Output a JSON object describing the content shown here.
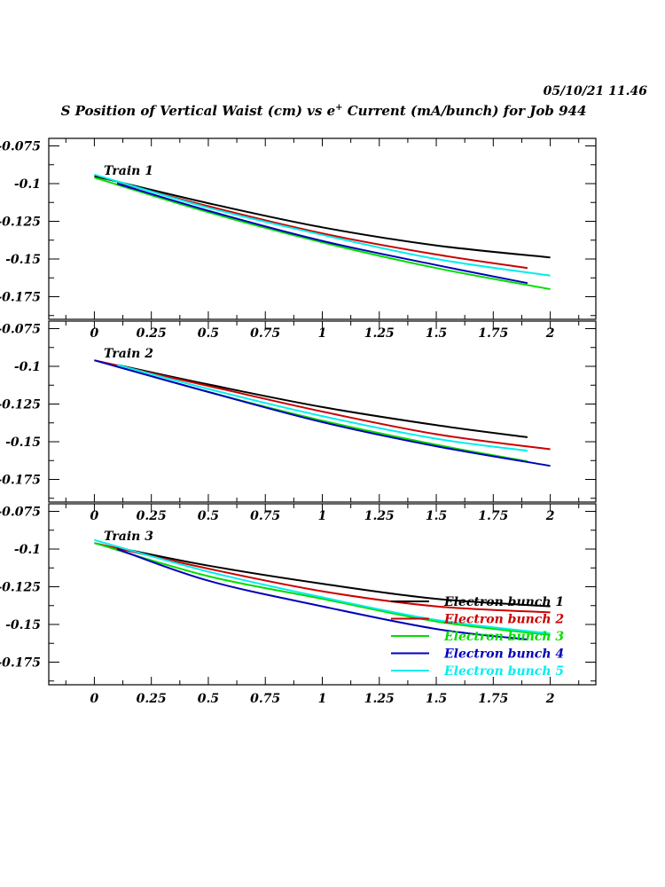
{
  "timestamp": "05/10/21   11.46",
  "title": {
    "prefix": "S Position of Vertical Waist (cm) vs e",
    "superscript": "+",
    "suffix": " Current (mA/bunch) for Job 944"
  },
  "colors": {
    "Electron bunch 1": "#000000",
    "Electron bunch 2": "#cc0000",
    "Electron bunch 3": "#00dd00",
    "Electron bunch 4": "#0000bb",
    "Electron bunch 5": "#00eeee"
  },
  "legend": {
    "placement": "bottom-right of third panel",
    "entries": [
      "Electron bunch 1",
      "Electron bunch 2",
      "Electron bunch 3",
      "Electron bunch 4",
      "Electron bunch 5"
    ]
  },
  "chart_data": [
    {
      "type": "line",
      "panel_label": "Train 1",
      "xlim": [
        -0.2,
        2.2
      ],
      "ylim": [
        -0.19,
        -0.07
      ],
      "xticks": [
        "0",
        "0.25",
        "0.5",
        "0.75",
        "1",
        "1.25",
        "1.5",
        "1.75",
        "2"
      ],
      "yticks": [
        "-0.075",
        "-0.1",
        "-0.125",
        "-0.15",
        "-0.175"
      ],
      "series": [
        {
          "name": "Electron bunch 1",
          "x": [
            0,
            0.5,
            1,
            1.5,
            2
          ],
          "y": [
            -0.095,
            -0.113,
            -0.129,
            -0.141,
            -0.149
          ]
        },
        {
          "name": "Electron bunch 2",
          "x": [
            0.1,
            0.5,
            1,
            1.5,
            1.9
          ],
          "y": [
            -0.099,
            -0.115,
            -0.133,
            -0.147,
            -0.156
          ]
        },
        {
          "name": "Electron bunch 3",
          "x": [
            0,
            0.5,
            1,
            1.5,
            2
          ],
          "y": [
            -0.096,
            -0.119,
            -0.139,
            -0.156,
            -0.17
          ]
        },
        {
          "name": "Electron bunch 4",
          "x": [
            0.1,
            0.5,
            1,
            1.5,
            1.9
          ],
          "y": [
            -0.1,
            -0.118,
            -0.138,
            -0.154,
            -0.166
          ]
        },
        {
          "name": "Electron bunch 5",
          "x": [
            0,
            0.5,
            1,
            1.5,
            2
          ],
          "y": [
            -0.094,
            -0.116,
            -0.134,
            -0.15,
            -0.161
          ]
        }
      ]
    },
    {
      "type": "line",
      "panel_label": "Train 2",
      "xlim": [
        -0.2,
        2.2
      ],
      "ylim": [
        -0.19,
        -0.07
      ],
      "xticks": [
        "0",
        "0.25",
        "0.5",
        "0.75",
        "1",
        "1.25",
        "1.5",
        "1.75",
        "2"
      ],
      "yticks": [
        "-0.075",
        "-0.1",
        "-0.125",
        "-0.15",
        "-0.175"
      ],
      "series": [
        {
          "name": "Electron bunch 1",
          "x": [
            0.1,
            0.5,
            1,
            1.5,
            1.9
          ],
          "y": [
            -0.099,
            -0.112,
            -0.127,
            -0.139,
            -0.147
          ]
        },
        {
          "name": "Electron bunch 2",
          "x": [
            0,
            0.5,
            1,
            1.5,
            2
          ],
          "y": [
            -0.096,
            -0.113,
            -0.13,
            -0.145,
            -0.155
          ]
        },
        {
          "name": "Electron bunch 3",
          "x": [
            0.1,
            0.5,
            1,
            1.5,
            1.9
          ],
          "y": [
            -0.1,
            -0.117,
            -0.136,
            -0.152,
            -0.163
          ]
        },
        {
          "name": "Electron bunch 4",
          "x": [
            0,
            0.5,
            1,
            1.5,
            2
          ],
          "y": [
            -0.096,
            -0.117,
            -0.137,
            -0.153,
            -0.166
          ]
        },
        {
          "name": "Electron bunch 5",
          "x": [
            0.1,
            0.5,
            1,
            1.5,
            1.9
          ],
          "y": [
            -0.099,
            -0.115,
            -0.133,
            -0.148,
            -0.156
          ]
        }
      ]
    },
    {
      "type": "line",
      "panel_label": "Train 3",
      "xlim": [
        -0.2,
        2.2
      ],
      "ylim": [
        -0.19,
        -0.07
      ],
      "xticks": [
        "0",
        "0.25",
        "0.5",
        "0.75",
        "1",
        "1.25",
        "1.5",
        "1.75",
        "2"
      ],
      "yticks": [
        "-0.075",
        "-0.1",
        "-0.125",
        "-0.15",
        "-0.175"
      ],
      "series": [
        {
          "name": "Electron bunch 1",
          "x": [
            0.1,
            0.5,
            1,
            1.5,
            2
          ],
          "y": [
            -0.099,
            -0.111,
            -0.123,
            -0.133,
            -0.138
          ]
        },
        {
          "name": "Electron bunch 2",
          "x": [
            0,
            0.5,
            1,
            1.5,
            2
          ],
          "y": [
            -0.096,
            -0.113,
            -0.128,
            -0.138,
            -0.142
          ]
        },
        {
          "name": "Electron bunch 3",
          "x": [
            0,
            0.5,
            1,
            1.5,
            2
          ],
          "y": [
            -0.096,
            -0.118,
            -0.133,
            -0.148,
            -0.157
          ]
        },
        {
          "name": "Electron bunch 4",
          "x": [
            0.1,
            0.5,
            1,
            1.5,
            1.9
          ],
          "y": [
            -0.1,
            -0.121,
            -0.138,
            -0.153,
            -0.16
          ]
        },
        {
          "name": "Electron bunch 5",
          "x": [
            0,
            0.5,
            1,
            1.5,
            2
          ],
          "y": [
            -0.094,
            -0.115,
            -0.132,
            -0.147,
            -0.156
          ]
        }
      ]
    }
  ]
}
